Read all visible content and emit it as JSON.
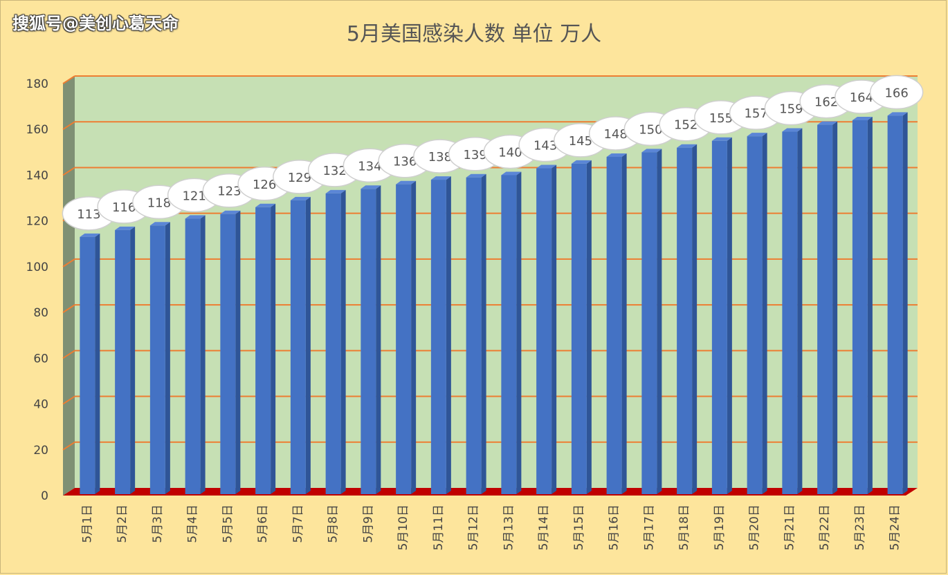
{
  "watermark": "搜狐号@美创心葛天命",
  "chart_data": {
    "type": "bar",
    "title": "5月美国感染人数 单位 万人",
    "xlabel": "",
    "ylabel": "",
    "ylim": [
      0,
      180
    ],
    "yticks": [
      0,
      20,
      40,
      60,
      80,
      100,
      120,
      140,
      160,
      180
    ],
    "categories": [
      "5月1日",
      "5月2日",
      "5月3日",
      "5月4日",
      "5月5日",
      "5月6日",
      "5月7日",
      "5月8日",
      "5月9日",
      "5月10日",
      "5月11日",
      "5月12日",
      "5月13日",
      "5月14日",
      "5月15日",
      "5月16日",
      "5月17日",
      "5月18日",
      "5月19日",
      "5月20日",
      "5月21日",
      "5月22日",
      "5月23日",
      "5月24日"
    ],
    "values": [
      113,
      116,
      118,
      121,
      123,
      126,
      129,
      132,
      134,
      136,
      138,
      139,
      140,
      143,
      145,
      148,
      150,
      152,
      155,
      157,
      159,
      162,
      164,
      166
    ],
    "grid": true,
    "legend": "none",
    "colors": {
      "bar": "#4472c4",
      "bar_side": "#2f5597",
      "bar_top": "#5b86d6",
      "plot_bg": "#c6e0b4",
      "gridline": "#ed7d31",
      "floor": "#c00000",
      "wall": "#7f9074",
      "label_bubble": "#ffffff"
    }
  }
}
